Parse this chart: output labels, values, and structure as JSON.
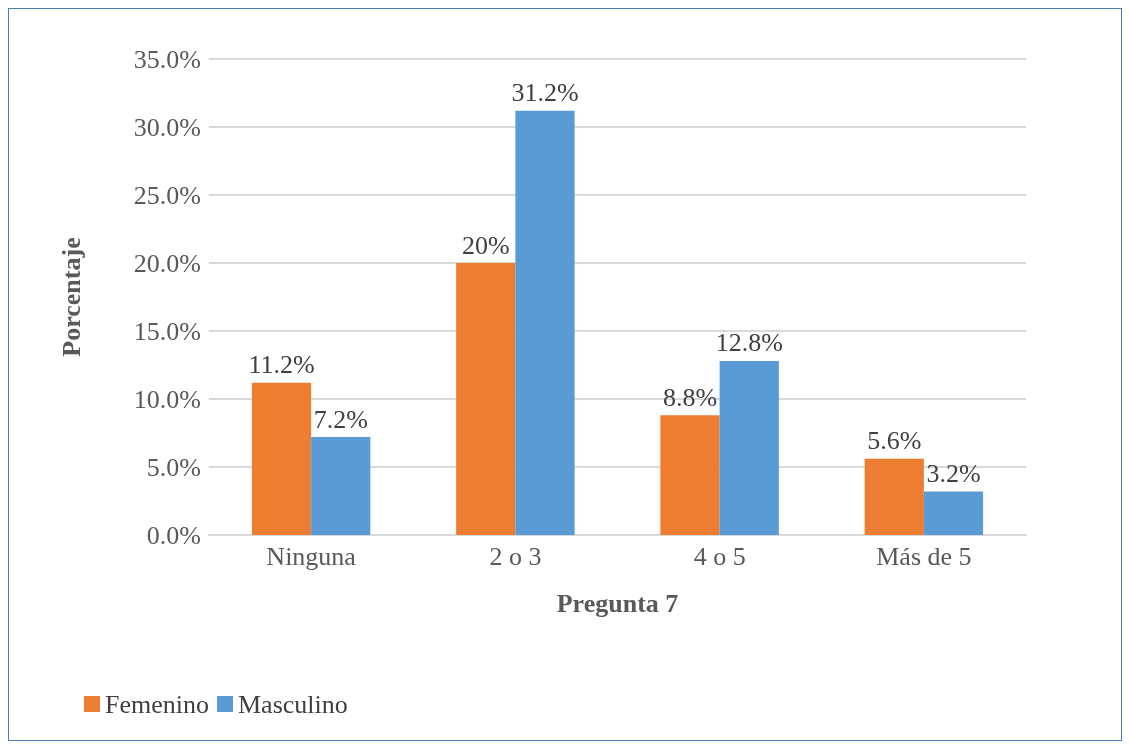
{
  "chart_data": {
    "type": "bar",
    "xlabel": "Pregunta 7",
    "ylabel": "Porcentaje",
    "categories": [
      "Ninguna",
      "2 o 3",
      "4 o 5",
      "Más de 5"
    ],
    "series": [
      {
        "name": "Femenino",
        "color": "#ed7d31",
        "values": [
          11.2,
          20,
          8.8,
          5.6
        ],
        "value_labels": [
          "11.2%",
          "20%",
          "8.8%",
          "5.6%"
        ]
      },
      {
        "name": "Masculino",
        "color": "#5b9bd5",
        "values": [
          7.2,
          31.2,
          12.8,
          3.2
        ],
        "value_labels": [
          "7.2%",
          "31.2%",
          "12.8%",
          "3.2%"
        ]
      }
    ],
    "ylim": [
      0,
      35
    ],
    "yticks": [
      {
        "value": 0,
        "label": "0.0%"
      },
      {
        "value": 5,
        "label": "5.0%"
      },
      {
        "value": 10,
        "label": "10.0%"
      },
      {
        "value": 15,
        "label": "15.0%"
      },
      {
        "value": 20,
        "label": "20.0%"
      },
      {
        "value": 25,
        "label": "25.0%"
      },
      {
        "value": 30,
        "label": "30.0%"
      },
      {
        "value": 35,
        "label": "35.0%"
      }
    ],
    "grid": "y",
    "legend": "bottom left"
  }
}
